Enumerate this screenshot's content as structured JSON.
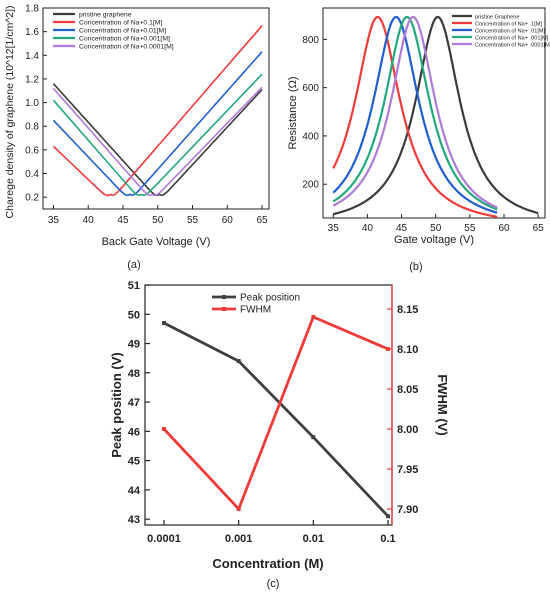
{
  "panels": {
    "a": "(a)",
    "b": "(b)",
    "c": "(c)"
  },
  "chart_data": [
    {
      "id": "a",
      "type": "line",
      "title": "",
      "xlabel": "Back Gate Voltage (V)",
      "ylabel": "Charege density of graphene (10^12[1/cm^2])",
      "xlim": [
        33.5,
        66
      ],
      "ylim": [
        0.1,
        1.8
      ],
      "xticks": [
        35,
        40,
        45,
        50,
        55,
        60,
        65
      ],
      "yticks": [
        0.2,
        0.4,
        0.6,
        0.8,
        1.0,
        1.2,
        1.4,
        1.6,
        1.8
      ],
      "ytick_labels": [
        "0.2",
        "0.4",
        "0.6",
        "0.8",
        "1.0",
        "1.2",
        "1.4",
        "1.6",
        "1.8"
      ],
      "grid": false,
      "legend_position": "top-left",
      "series": [
        {
          "name": "pristine graphene",
          "color": "#3b3b3b",
          "x": [
            35,
            50.2,
            65
          ],
          "y": [
            1.16,
            0.17,
            1.11
          ]
        },
        {
          "name": "Concentration of Na+0.1[M]",
          "color": "#ef3a3a",
          "x": [
            35,
            43.2,
            65
          ],
          "y": [
            0.63,
            0.17,
            1.65
          ]
        },
        {
          "name": "Concentration of Na+0.01[M]",
          "color": "#1f5fd0",
          "x": [
            35,
            46.0,
            65
          ],
          "y": [
            0.85,
            0.17,
            1.43
          ]
        },
        {
          "name": "Concentration of Na+0.001[M]",
          "color": "#22a87a",
          "x": [
            35,
            47.6,
            65
          ],
          "y": [
            1.02,
            0.17,
            1.24
          ]
        },
        {
          "name": "Concentration of Na+0.0001[M]",
          "color": "#b07ad8",
          "x": [
            35,
            49.2,
            65
          ],
          "y": [
            1.12,
            0.17,
            1.13
          ]
        }
      ]
    },
    {
      "id": "b",
      "type": "line",
      "title": "",
      "xlabel": "Gate voltage (V)",
      "ylabel": "Resistance (Ω)",
      "xlim": [
        33.5,
        66
      ],
      "ylim": [
        60,
        930
      ],
      "xticks": [
        35,
        40,
        45,
        50,
        55,
        60,
        65
      ],
      "yticks": [
        200,
        400,
        600,
        800
      ],
      "grid": false,
      "legend_position": "top-right",
      "series": [
        {
          "name": "pristine Graphene",
          "color": "#3b3b3b",
          "peak": 50.3,
          "hwhm": 4.0,
          "r0": 893,
          "base": 20,
          "x_range": [
            35,
            65
          ]
        },
        {
          "name": "Concentration of Na+ .1[M]",
          "color": "#ef3a3a",
          "peak": 41.5,
          "hwhm": 4.07,
          "r0": 893,
          "base": 20,
          "x_range": [
            35,
            59
          ]
        },
        {
          "name": "Concentration of Na+ .01[M]",
          "color": "#1f5fd0",
          "peak": 44.2,
          "hwhm": 4.1,
          "r0": 893,
          "base": 20,
          "x_range": [
            35,
            59
          ]
        },
        {
          "name": "Concentration of Na+ .001[M]",
          "color": "#22a87a",
          "peak": 45.8,
          "hwhm": 4.07,
          "r0": 893,
          "base": 20,
          "x_range": [
            35,
            59
          ]
        },
        {
          "name": "Concentration of Na+ .0001[M]",
          "color": "#b07ad8",
          "peak": 46.7,
          "hwhm": 4.0,
          "r0": 893,
          "base": 20,
          "x_range": [
            35,
            59
          ]
        }
      ]
    },
    {
      "id": "c",
      "type": "line",
      "title": "",
      "categories": [
        "0.0001",
        "0.001",
        "0.01",
        "0.1"
      ],
      "xlabel": "Concentration (M)",
      "ylabel": "Peak position (V)",
      "ylabel_right": "FWHM (V)",
      "ylim": [
        42.8,
        51
      ],
      "yticks": [
        43,
        44,
        45,
        46,
        47,
        48,
        49,
        50,
        51
      ],
      "ylim_right": [
        7.88,
        8.18
      ],
      "yticks_right": [
        7.9,
        7.95,
        8.0,
        8.05,
        8.1,
        8.15
      ],
      "ytick_labels_right": [
        "7.90",
        "7.95",
        "8.00",
        "8.05",
        "8.10",
        "8.15"
      ],
      "grid": false,
      "legend_position": "top-center",
      "series": [
        {
          "name": "Peak position",
          "color": "#3f3f3f",
          "axis": "left",
          "values": [
            49.7,
            48.4,
            45.8,
            43.1
          ]
        },
        {
          "name": "FWHM",
          "color": "#ef3a3a",
          "axis": "right",
          "values": [
            8.0,
            7.9,
            8.14,
            8.1
          ]
        }
      ]
    }
  ]
}
